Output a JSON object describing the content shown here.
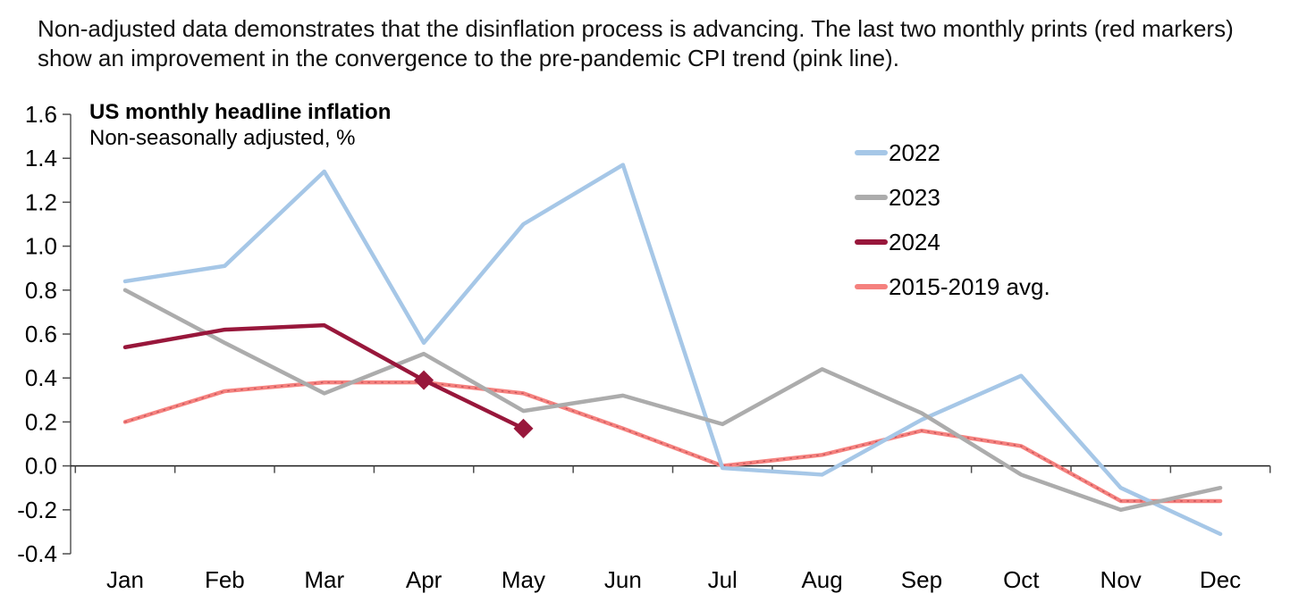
{
  "caption": {
    "line1": "Non-adjusted data demonstrates that the disinflation process is advancing. The last two monthly prints (red markers)",
    "line2": "show an improvement in the convergence to the pre-pandemic CPI trend (pink line)."
  },
  "chart": {
    "title": "US monthly headline inflation",
    "subtitle": "Non-seasonally adjusted, %"
  },
  "legend": {
    "items": [
      {
        "label": "2022",
        "color": "#A6C7E7"
      },
      {
        "label": "2023",
        "color": "#ACACAC"
      },
      {
        "label": "2024",
        "color": "#98173B"
      },
      {
        "label": "2015-2019 avg.",
        "color": "#F5817E"
      }
    ]
  },
  "chart_data": {
    "type": "line",
    "title": "US monthly headline inflation",
    "subtitle": "Non-seasonally adjusted, %",
    "categories": [
      "Jan",
      "Feb",
      "Mar",
      "Apr",
      "May",
      "Jun",
      "Jul",
      "Aug",
      "Sep",
      "Oct",
      "Nov",
      "Dec"
    ],
    "series": [
      {
        "name": "2022",
        "color": "#A6C7E7",
        "values": [
          0.84,
          0.91,
          1.34,
          0.56,
          1.1,
          1.37,
          -0.01,
          -0.04,
          0.21,
          0.41,
          -0.1,
          -0.31
        ]
      },
      {
        "name": "2023",
        "color": "#ACACAC",
        "values": [
          0.8,
          0.56,
          0.33,
          0.51,
          0.25,
          0.32,
          0.19,
          0.44,
          0.24,
          -0.04,
          -0.2,
          -0.1
        ]
      },
      {
        "name": "2024",
        "color": "#98173B",
        "values": [
          0.54,
          0.62,
          0.64,
          0.39,
          0.17
        ],
        "markers_last_two": "diamond"
      },
      {
        "name": "2015-2019 avg.",
        "color": "#F5817E",
        "values": [
          0.2,
          0.34,
          0.38,
          0.38,
          0.33,
          0.17,
          0.0,
          0.05,
          0.16,
          0.09,
          -0.16,
          -0.16
        ],
        "speckled": true
      }
    ],
    "xlabel": "",
    "ylabel": "%",
    "ylim": [
      -0.4,
      1.6
    ],
    "ytick_step": 0.2,
    "y_ticks": [
      "1.6",
      "1.4",
      "1.2",
      "1.0",
      "0.8",
      "0.6",
      "0.4",
      "0.2",
      "0.0",
      "-0.2",
      "-0.4"
    ],
    "grid": false,
    "legend_position": "upper-right-inside"
  }
}
